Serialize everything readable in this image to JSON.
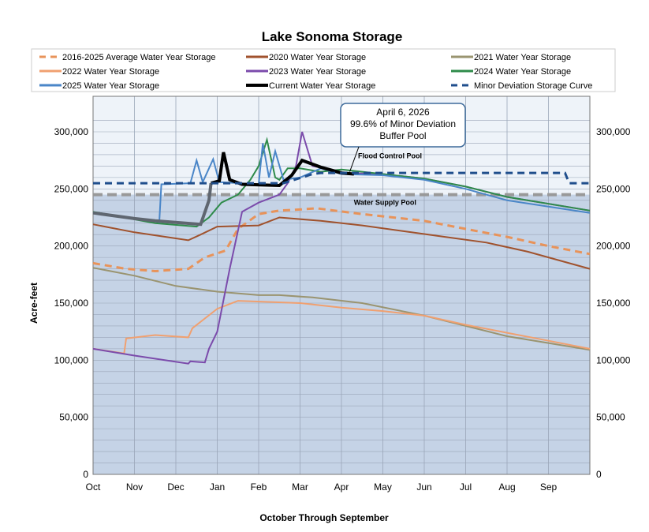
{
  "chart_data": {
    "type": "line",
    "title": "Lake Sonoma Storage",
    "xlabel": "October Through September",
    "ylabel": "Acre-feet",
    "categories": [
      "Oct",
      "Nov",
      "Dec",
      "Jan",
      "Feb",
      "Mar",
      "Apr",
      "May",
      "Jun",
      "Jul",
      "Aug",
      "Sep"
    ],
    "ylim": [
      0,
      320000
    ],
    "yticks": [
      0,
      50000,
      100000,
      150000,
      200000,
      250000,
      300000
    ],
    "ytick_labels": [
      "0",
      "50,000",
      "100,000",
      "150,000",
      "200,000",
      "250,000",
      "300,000"
    ],
    "grid": true,
    "legend_position": "top",
    "pools": {
      "water_supply_top": 245000,
      "flood_control_label": "Flood Control Pool",
      "water_supply_label": "Water Supply Pool",
      "colors": {
        "water_supply": "#c5d3e6",
        "flood_control": "#eef3f9"
      }
    },
    "annotation": {
      "lines": [
        "April 6, 2026",
        "99.6% of Minor Deviation",
        "Buffer Pool"
      ],
      "x": 6.2,
      "y": 263000
    },
    "series": [
      {
        "name": "2016-2025 Average Water Year Storage",
        "color": "#e8935a",
        "dash": true,
        "points": [
          [
            0,
            185000
          ],
          [
            0.8,
            180000
          ],
          [
            1.5,
            178000
          ],
          [
            2.3,
            180000
          ],
          [
            2.7,
            190000
          ],
          [
            3.2,
            196000
          ],
          [
            3.5,
            215000
          ],
          [
            4,
            228000
          ],
          [
            4.5,
            231000
          ],
          [
            5,
            232000
          ],
          [
            5.4,
            233000
          ],
          [
            6.5,
            228000
          ],
          [
            8,
            222000
          ],
          [
            9,
            215000
          ],
          [
            10,
            208000
          ],
          [
            11,
            200000
          ],
          [
            12,
            193000
          ]
        ]
      },
      {
        "name": "2020 Water Year Storage",
        "color": "#a0522d",
        "points": [
          [
            0,
            219000
          ],
          [
            1,
            212000
          ],
          [
            2.3,
            205000
          ],
          [
            2.6,
            210000
          ],
          [
            3,
            217000
          ],
          [
            4,
            218000
          ],
          [
            4.5,
            225000
          ],
          [
            5.5,
            222000
          ],
          [
            6.5,
            218000
          ],
          [
            7.5,
            213000
          ],
          [
            8.5,
            208000
          ],
          [
            9.5,
            203000
          ],
          [
            10.5,
            195000
          ],
          [
            12,
            180000
          ]
        ]
      },
      {
        "name": "2021 Water Year Storage",
        "color": "#9a9470",
        "points": [
          [
            0,
            181000
          ],
          [
            1,
            174000
          ],
          [
            2,
            165000
          ],
          [
            3,
            160000
          ],
          [
            4,
            157000
          ],
          [
            4.5,
            157000
          ],
          [
            5.3,
            155000
          ],
          [
            6.5,
            150000
          ],
          [
            8,
            139000
          ],
          [
            9,
            130000
          ],
          [
            10,
            121000
          ],
          [
            11,
            115000
          ],
          [
            12,
            109000
          ]
        ]
      },
      {
        "name": "2022 Water Year Storage",
        "color": "#f0a070",
        "points": [
          [
            0,
            110000
          ],
          [
            0.75,
            106000
          ],
          [
            0.8,
            119000
          ],
          [
            1.5,
            122000
          ],
          [
            2.3,
            120000
          ],
          [
            2.4,
            128000
          ],
          [
            3,
            145000
          ],
          [
            3.5,
            152000
          ],
          [
            5,
            150000
          ],
          [
            6,
            146000
          ],
          [
            7,
            143000
          ],
          [
            8,
            139000
          ],
          [
            9,
            131000
          ],
          [
            10,
            124000
          ],
          [
            11,
            117000
          ],
          [
            12,
            110000
          ]
        ]
      },
      {
        "name": "2023 Water Year Storage",
        "color": "#7b4bab",
        "points": [
          [
            0,
            110000
          ],
          [
            1,
            104000
          ],
          [
            2.3,
            97000
          ],
          [
            2.35,
            99000
          ],
          [
            2.7,
            98000
          ],
          [
            2.8,
            110000
          ],
          [
            3,
            125000
          ],
          [
            3.3,
            180000
          ],
          [
            3.6,
            230000
          ],
          [
            4,
            238000
          ],
          [
            4.5,
            245000
          ],
          [
            4.7,
            255000
          ],
          [
            4.9,
            270000
          ],
          [
            5.05,
            300000
          ],
          [
            5.3,
            270000
          ],
          [
            5.6,
            268000
          ],
          [
            6,
            264000
          ],
          [
            7,
            263000
          ],
          [
            8,
            259000
          ],
          [
            9,
            252000
          ],
          [
            10,
            243000
          ],
          [
            12,
            231000
          ]
        ]
      },
      {
        "name": "2024 Water Year Storage",
        "color": "#2e8b4a",
        "points": [
          [
            0,
            230000
          ],
          [
            1.5,
            220000
          ],
          [
            2.5,
            217000
          ],
          [
            2.8,
            225000
          ],
          [
            3.1,
            238000
          ],
          [
            3.5,
            245000
          ],
          [
            3.8,
            258000
          ],
          [
            4,
            270000
          ],
          [
            4.2,
            293000
          ],
          [
            4.4,
            260000
          ],
          [
            4.5,
            258000
          ],
          [
            4.7,
            268000
          ],
          [
            5,
            268000
          ],
          [
            5.5,
            265000
          ],
          [
            6,
            267000
          ],
          [
            7,
            263000
          ],
          [
            8,
            259000
          ],
          [
            9,
            252000
          ],
          [
            10,
            243000
          ],
          [
            12,
            231000
          ]
        ]
      },
      {
        "name": "2025 Water Year Storage",
        "color": "#4a86c8",
        "points": [
          [
            0,
            229000
          ],
          [
            1.4,
            222000
          ],
          [
            1.6,
            221000
          ],
          [
            1.65,
            254000
          ],
          [
            2.35,
            255000
          ],
          [
            2.5,
            275000
          ],
          [
            2.65,
            256000
          ],
          [
            2.9,
            276000
          ],
          [
            3.05,
            256000
          ],
          [
            4,
            254000
          ],
          [
            4.1,
            290000
          ],
          [
            4.25,
            260000
          ],
          [
            4.4,
            283000
          ],
          [
            4.6,
            258000
          ],
          [
            5,
            260000
          ],
          [
            5.5,
            268000
          ],
          [
            6,
            263000
          ],
          [
            7,
            262000
          ],
          [
            8,
            258000
          ],
          [
            9,
            250000
          ],
          [
            10,
            240000
          ],
          [
            12,
            229000
          ]
        ]
      },
      {
        "name": "Current Water Year Storage",
        "color": "#000000",
        "early_color": "#5f6670",
        "points": [
          [
            0,
            229000
          ],
          [
            1,
            224000
          ],
          [
            1.5,
            222000
          ],
          [
            2.6,
            219000
          ],
          [
            2.8,
            240000
          ],
          [
            2.85,
            255000
          ],
          [
            3.05,
            257000
          ],
          [
            3.15,
            282000
          ],
          [
            3.3,
            258000
          ],
          [
            3.6,
            254000
          ],
          [
            4.5,
            253000
          ],
          [
            4.8,
            262000
          ],
          [
            5.05,
            275000
          ],
          [
            5.5,
            269000
          ],
          [
            6,
            264000
          ],
          [
            6.3,
            263000
          ]
        ]
      },
      {
        "name": "Minor Deviation Storage Curve",
        "color": "#1f4e8c",
        "dash": true,
        "points": [
          [
            0,
            255000
          ],
          [
            4.6,
            255000
          ],
          [
            5.3,
            263000
          ],
          [
            5.5,
            264000
          ],
          [
            11.4,
            264000
          ],
          [
            11.5,
            255000
          ],
          [
            12,
            255000
          ]
        ]
      }
    ]
  }
}
